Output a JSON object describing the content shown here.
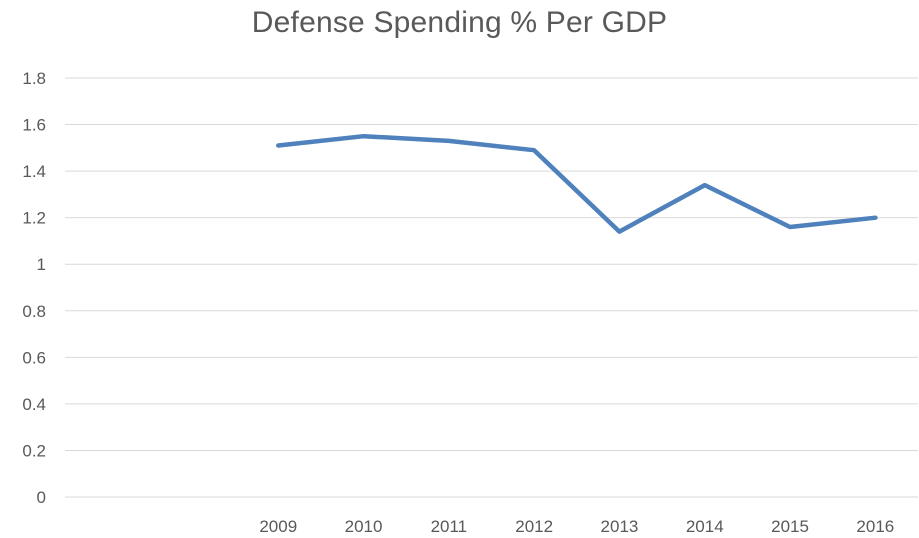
{
  "chart_data": {
    "type": "line",
    "title": "Defense Spending % Per GDP",
    "xlabel": "",
    "ylabel": "",
    "categories": [
      "",
      "",
      "2009",
      "2010",
      "2011",
      "2012",
      "2013",
      "2014",
      "2015",
      "2016"
    ],
    "series": [
      {
        "values": [
          null,
          null,
          1.51,
          1.55,
          1.53,
          1.49,
          1.14,
          1.34,
          1.16,
          1.2
        ],
        "color": "#4f81bd"
      }
    ],
    "yticks": [
      "0",
      "0.2",
      "0.4",
      "0.6",
      "0.8",
      "1",
      "1.2",
      "1.4",
      "1.6",
      "1.8"
    ],
    "ylim": [
      0,
      1.8
    ],
    "grid": true,
    "legend": "none",
    "colors": {
      "gridline": "#d9d9d9",
      "axis_text": "#595959",
      "title_text": "#595959"
    }
  }
}
